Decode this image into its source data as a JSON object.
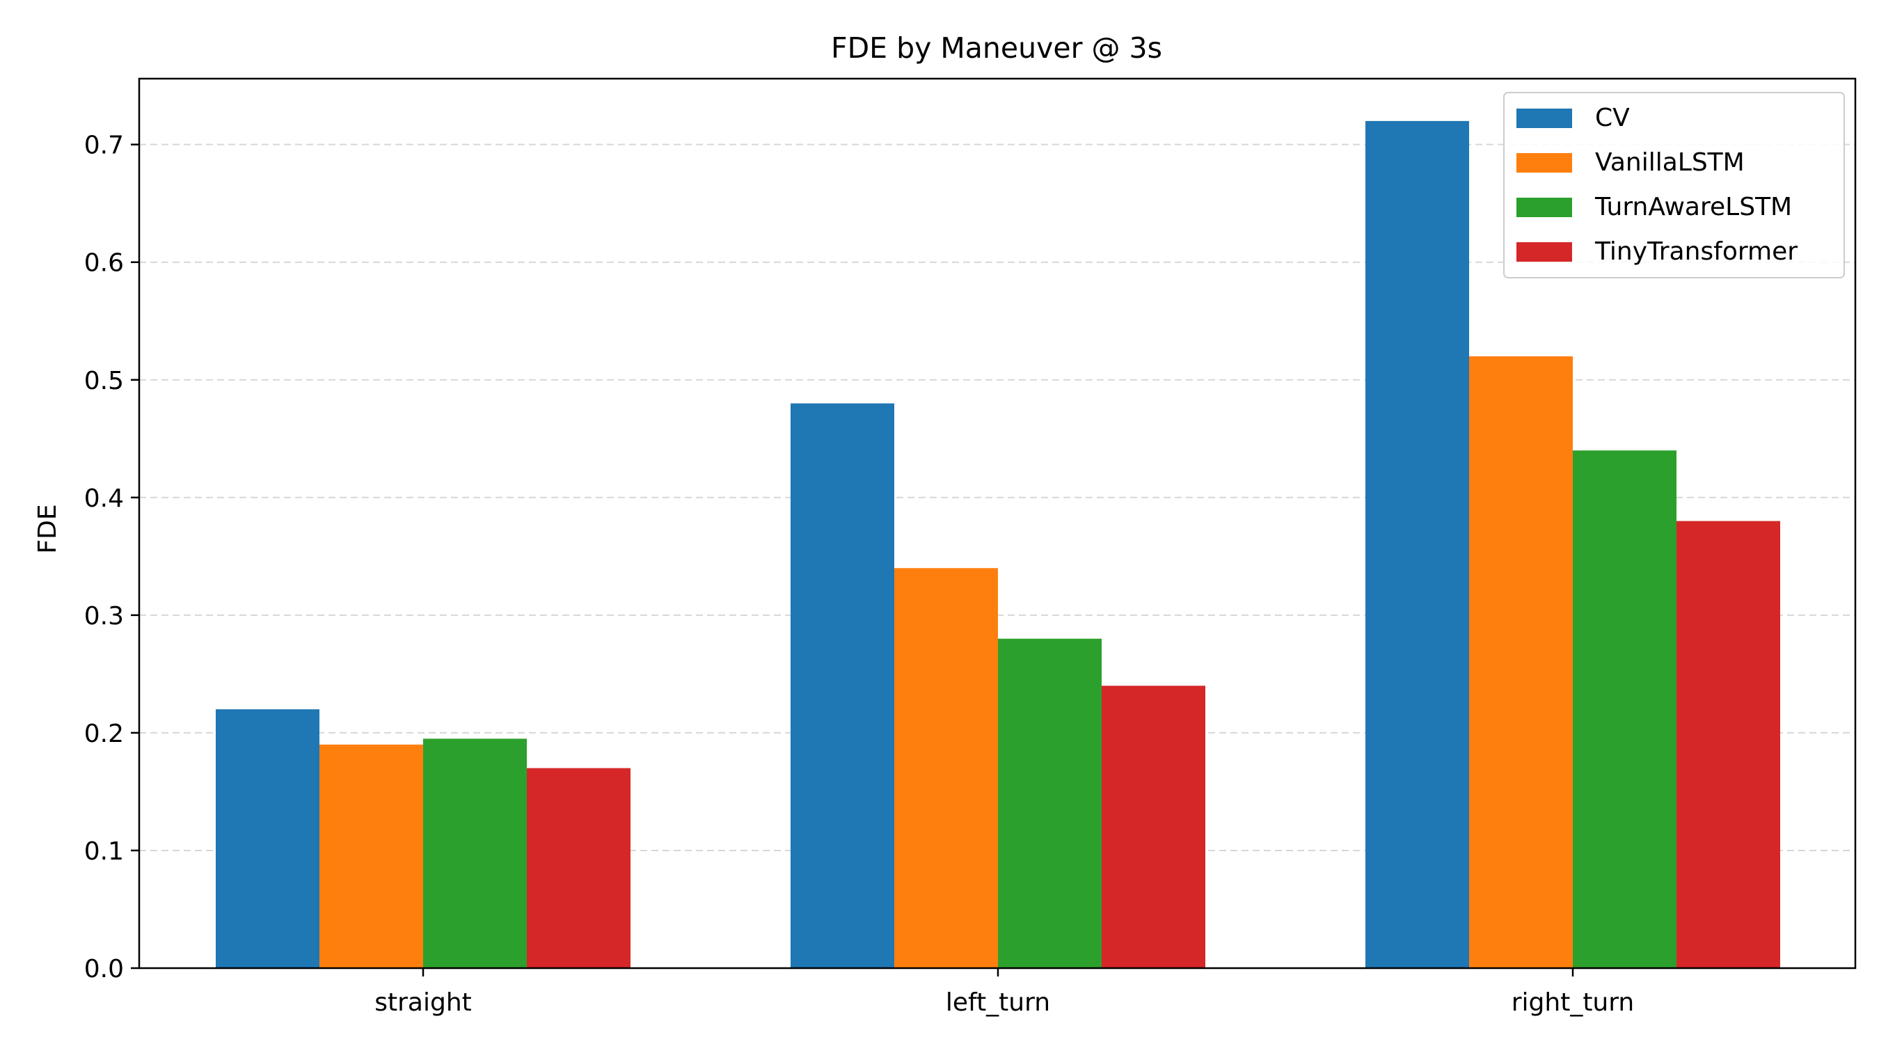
{
  "chart_data": {
    "type": "bar",
    "title": "FDE by Maneuver @ 3s",
    "xlabel": "",
    "ylabel": "FDE",
    "categories": [
      "straight",
      "left_turn",
      "right_turn"
    ],
    "series": [
      {
        "name": "CV",
        "values": [
          0.22,
          0.48,
          0.72
        ],
        "color": "#1f77b4"
      },
      {
        "name": "VanillaLSTM",
        "values": [
          0.19,
          0.34,
          0.52
        ],
        "color": "#ff7f0e"
      },
      {
        "name": "TurnAwareLSTM",
        "values": [
          0.195,
          0.28,
          0.44
        ],
        "color": "#2ca02c"
      },
      {
        "name": "TinyTransformer",
        "values": [
          0.17,
          0.24,
          0.38
        ],
        "color": "#d62728"
      }
    ],
    "ylim": [
      0,
      0.756
    ],
    "yticks": [
      0.0,
      0.1,
      0.2,
      0.3,
      0.4,
      0.5,
      0.6,
      0.7
    ],
    "ytick_labels": [
      "0.0",
      "0.1",
      "0.2",
      "0.3",
      "0.4",
      "0.5",
      "0.6",
      "0.7"
    ],
    "grid": {
      "axis": "y",
      "style": "dashed"
    },
    "legend": {
      "position": "top-right"
    }
  }
}
